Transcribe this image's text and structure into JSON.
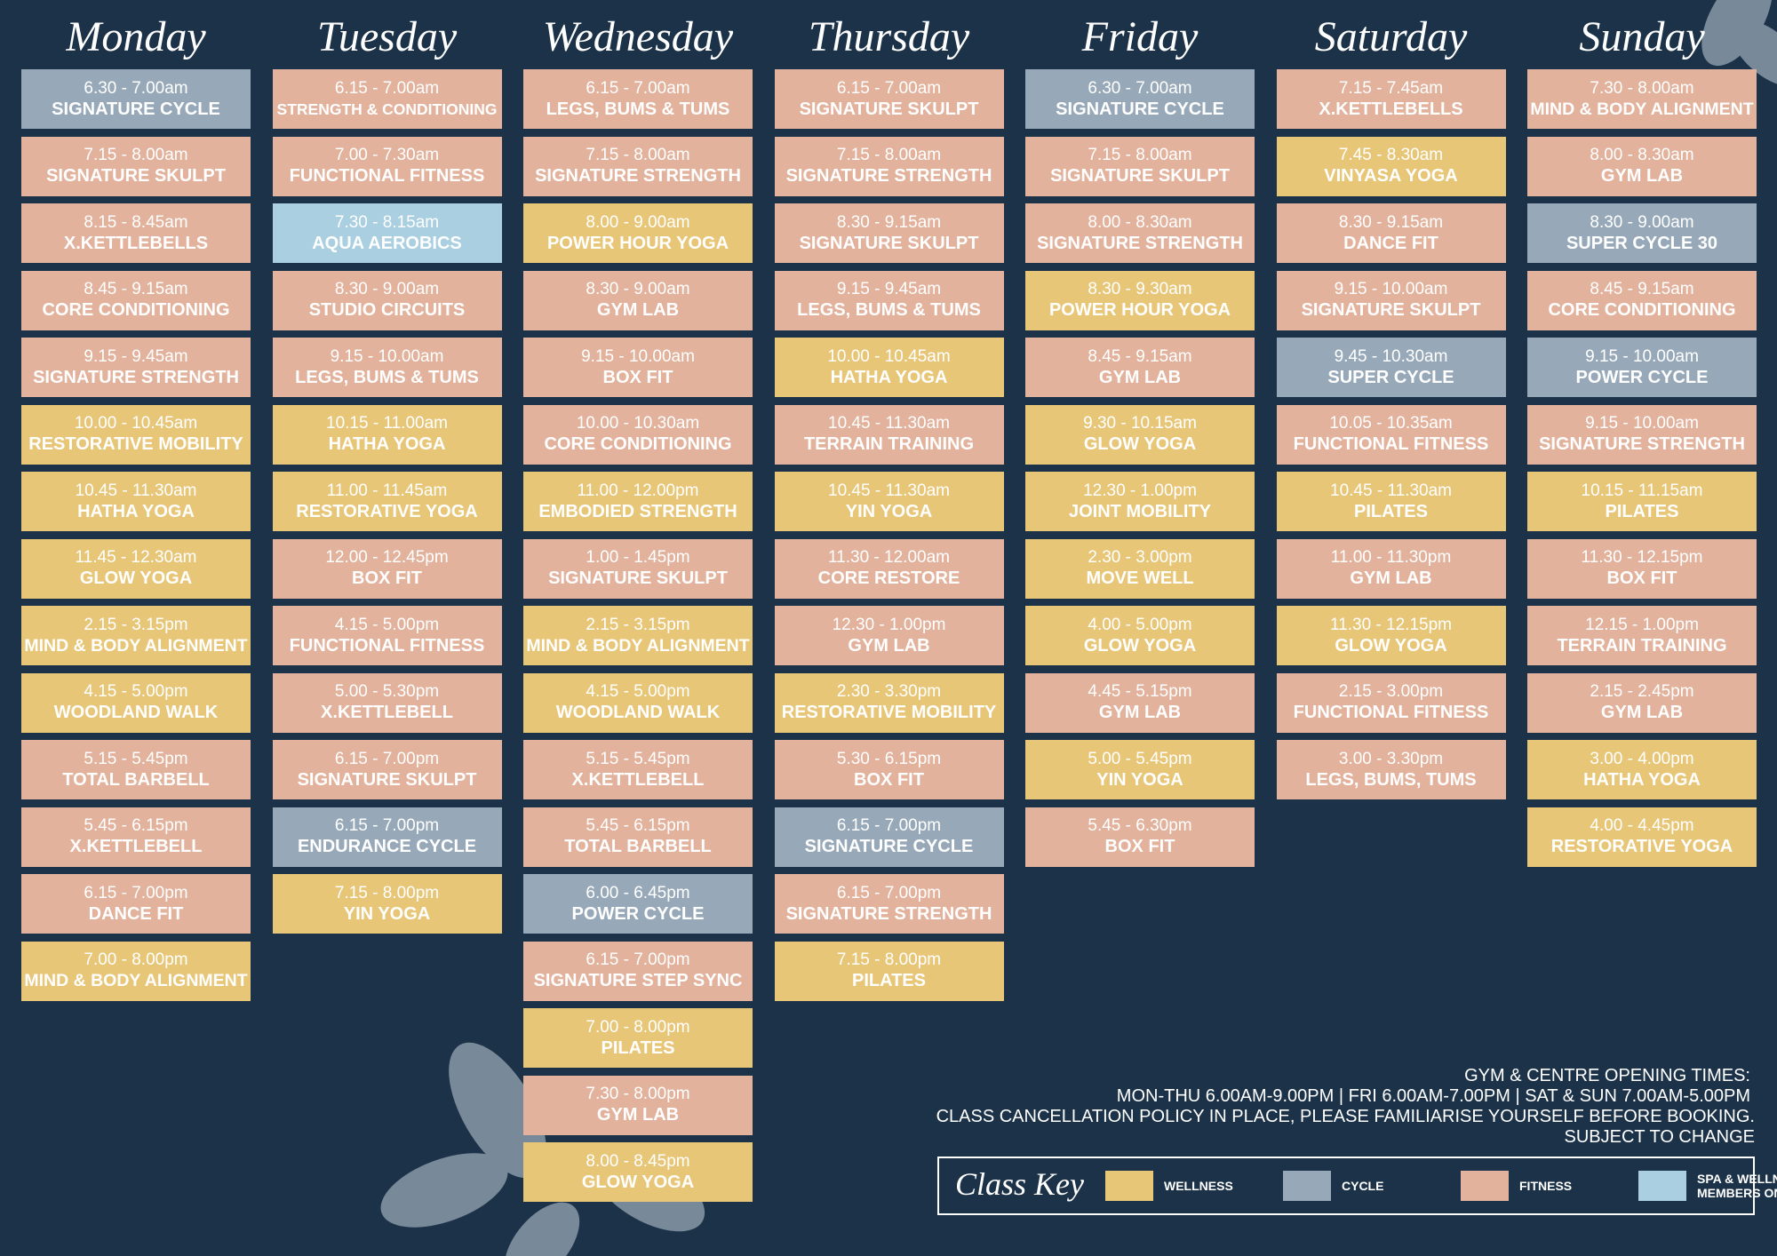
{
  "days": [
    {
      "name": "Monday",
      "classes": [
        {
          "time": "6.30 - 7.00am",
          "name": "SIGNATURE CYCLE",
          "color": "#97a9b9"
        },
        {
          "time": "7.15 - 8.00am",
          "name": "SIGNATURE SKULPT",
          "color": "#e2b29c"
        },
        {
          "time": "8.15 - 8.45am",
          "name": "X.KETTLEBELLS",
          "color": "#e2b29c"
        },
        {
          "time": "8.45 - 9.15am",
          "name": "CORE CONDITIONING",
          "color": "#e2b29c"
        },
        {
          "time": "9.15 - 9.45am",
          "name": "SIGNATURE STRENGTH",
          "color": "#e2b29c"
        },
        {
          "time": "10.00 - 10.45am",
          "name": "RESTORATIVE MOBILITY",
          "color": "#e8c677"
        },
        {
          "time": "10.45 - 11.30am",
          "name": "HATHA YOGA",
          "color": "#e8c677"
        },
        {
          "time": "11.45 - 12.30am",
          "name": "GLOW YOGA",
          "color": "#e8c677"
        },
        {
          "time": "2.15 - 3.15pm",
          "name": "MIND & BODY ALIGNMENT",
          "color": "#e8c677"
        },
        {
          "time": "4.15 - 5.00pm",
          "name": "WOODLAND WALK",
          "color": "#e8c677"
        },
        {
          "time": "5.15 - 5.45pm",
          "name": "TOTAL BARBELL",
          "color": "#e2b29c"
        },
        {
          "time": "5.45 - 6.15pm",
          "name": "X.KETTLEBELL",
          "color": "#e2b29c"
        },
        {
          "time": "6.15 - 7.00pm",
          "name": "DANCE FIT",
          "color": "#e2b29c"
        },
        {
          "time": "7.00 - 8.00pm",
          "name": "MIND & BODY ALIGNMENT",
          "color": "#e8c677"
        }
      ]
    },
    {
      "name": "Tuesday",
      "classes": [
        {
          "time": "6.15 - 7.00am",
          "name": "STRENGTH & CONDITIONING",
          "color": "#e2b29c"
        },
        {
          "time": "7.00 - 7.30am",
          "name": "FUNCTIONAL FITNESS",
          "color": "#e2b29c"
        },
        {
          "time": "7.30 - 8.15am",
          "name": "AQUA AEROBICS",
          "color": "#a9cfe0"
        },
        {
          "time": "8.30 - 9.00am",
          "name": "STUDIO CIRCUITS",
          "color": "#e2b29c"
        },
        {
          "time": "9.15 - 10.00am",
          "name": "LEGS, BUMS & TUMS",
          "color": "#e2b29c"
        },
        {
          "time": "10.15 - 11.00am",
          "name": "HATHA YOGA",
          "color": "#e8c677"
        },
        {
          "time": "11.00 - 11.45am",
          "name": "RESTORATIVE YOGA",
          "color": "#e8c677"
        },
        {
          "time": "12.00 - 12.45pm",
          "name": "BOX FIT",
          "color": "#e2b29c"
        },
        {
          "time": "4.15 - 5.00pm",
          "name": "FUNCTIONAL FITNESS",
          "color": "#e2b29c"
        },
        {
          "time": "5.00 - 5.30pm",
          "name": "X.KETTLEBELL",
          "color": "#e2b29c"
        },
        {
          "time": "6.15 - 7.00pm",
          "name": "SIGNATURE SKULPT",
          "color": "#e2b29c"
        },
        {
          "time": "6.15 - 7.00pm",
          "name": "ENDURANCE CYCLE",
          "color": "#97a9b9"
        },
        {
          "time": "7.15 - 8.00pm",
          "name": "YIN YOGA",
          "color": "#e8c677"
        }
      ]
    },
    {
      "name": "Wednesday",
      "classes": [
        {
          "time": "6.15 - 7.00am",
          "name": "LEGS, BUMS & TUMS",
          "color": "#e2b29c"
        },
        {
          "time": "7.15 - 8.00am",
          "name": "SIGNATURE STRENGTH",
          "color": "#e2b29c"
        },
        {
          "time": "8.00 - 9.00am",
          "name": "POWER HOUR YOGA",
          "color": "#e8c677"
        },
        {
          "time": "8.30 - 9.00am",
          "name": "GYM LAB",
          "color": "#e2b29c"
        },
        {
          "time": "9.15 - 10.00am",
          "name": "BOX FIT",
          "color": "#e2b29c"
        },
        {
          "time": "10.00 - 10.30am",
          "name": "CORE CONDITIONING",
          "color": "#e2b29c"
        },
        {
          "time": "11.00 - 12.00pm",
          "name": "EMBODIED STRENGTH",
          "color": "#e8c677"
        },
        {
          "time": "1.00 - 1.45pm",
          "name": "SIGNATURE SKULPT",
          "color": "#e2b29c"
        },
        {
          "time": "2.15 - 3.15pm",
          "name": "MIND & BODY ALIGNMENT",
          "color": "#e8c677"
        },
        {
          "time": "4.15 - 5.00pm",
          "name": "WOODLAND WALK",
          "color": "#e8c677"
        },
        {
          "time": "5.15 - 5.45pm",
          "name": "X.KETTLEBELL",
          "color": "#e2b29c"
        },
        {
          "time": "5.45 - 6.15pm",
          "name": "TOTAL BARBELL",
          "color": "#e2b29c"
        },
        {
          "time": "6.00 - 6.45pm",
          "name": "POWER CYCLE",
          "color": "#97a9b9"
        },
        {
          "time": "6.15 - 7.00pm",
          "name": "SIGNATURE STEP SYNC",
          "color": "#e2b29c"
        },
        {
          "time": "7.00 - 8.00pm",
          "name": "PILATES",
          "color": "#e8c677"
        },
        {
          "time": "7.30 - 8.00pm",
          "name": "GYM LAB",
          "color": "#e2b29c"
        },
        {
          "time": "8.00 - 8.45pm",
          "name": "GLOW YOGA",
          "color": "#e8c677"
        }
      ]
    },
    {
      "name": "Thursday",
      "classes": [
        {
          "time": "6.15 - 7.00am",
          "name": "SIGNATURE SKULPT",
          "color": "#e2b29c"
        },
        {
          "time": "7.15 - 8.00am",
          "name": "SIGNATURE STRENGTH",
          "color": "#e2b29c"
        },
        {
          "time": "8.30 - 9.15am",
          "name": "SIGNATURE SKULPT",
          "color": "#e2b29c"
        },
        {
          "time": "9.15 - 9.45am",
          "name": "LEGS, BUMS & TUMS",
          "color": "#e2b29c"
        },
        {
          "time": "10.00 - 10.45am",
          "name": "HATHA YOGA",
          "color": "#e8c677"
        },
        {
          "time": "10.45 - 11.30am",
          "name": "TERRAIN TRAINING",
          "color": "#e2b29c"
        },
        {
          "time": "10.45 - 11.30am",
          "name": "YIN YOGA",
          "color": "#e8c677"
        },
        {
          "time": "11.30 - 12.00am",
          "name": "CORE RESTORE",
          "color": "#e2b29c"
        },
        {
          "time": "12.30 - 1.00pm",
          "name": "GYM LAB",
          "color": "#e2b29c"
        },
        {
          "time": "2.30 - 3.30pm",
          "name": "RESTORATIVE MOBILITY",
          "color": "#e8c677"
        },
        {
          "time": "5.30 - 6.15pm",
          "name": "BOX FIT",
          "color": "#e2b29c"
        },
        {
          "time": "6.15 - 7.00pm",
          "name": "SIGNATURE CYCLE",
          "color": "#97a9b9"
        },
        {
          "time": "6.15 - 7.00pm",
          "name": "SIGNATURE STRENGTH",
          "color": "#e2b29c"
        },
        {
          "time": "7.15 - 8.00pm",
          "name": "PILATES",
          "color": "#e8c677"
        }
      ]
    },
    {
      "name": "Friday",
      "classes": [
        {
          "time": "6.30 - 7.00am",
          "name": "SIGNATURE CYCLE",
          "color": "#97a9b9"
        },
        {
          "time": "7.15 - 8.00am",
          "name": "SIGNATURE SKULPT",
          "color": "#e2b29c"
        },
        {
          "time": "8.00 - 8.30am",
          "name": "SIGNATURE STRENGTH",
          "color": "#e2b29c"
        },
        {
          "time": "8.30 - 9.30am",
          "name": "POWER HOUR YOGA",
          "color": "#e8c677"
        },
        {
          "time": "8.45 - 9.15am",
          "name": "GYM LAB",
          "color": "#e2b29c"
        },
        {
          "time": "9.30 - 10.15am",
          "name": "GLOW YOGA",
          "color": "#e8c677"
        },
        {
          "time": "12.30 - 1.00pm",
          "name": "JOINT MOBILITY",
          "color": "#e8c677"
        },
        {
          "time": "2.30 - 3.00pm",
          "name": "MOVE WELL",
          "color": "#e8c677"
        },
        {
          "time": "4.00 - 5.00pm",
          "name": "GLOW YOGA",
          "color": "#e8c677"
        },
        {
          "time": "4.45 - 5.15pm",
          "name": "GYM LAB",
          "color": "#e2b29c"
        },
        {
          "time": "5.00 - 5.45pm",
          "name": "YIN YOGA",
          "color": "#e8c677"
        },
        {
          "time": "5.45 -  6.30pm",
          "name": "BOX FIT",
          "color": "#e2b29c"
        }
      ]
    },
    {
      "name": "Saturday",
      "classes": [
        {
          "time": "7.15 - 7.45am",
          "name": "X.KETTLEBELLS",
          "color": "#e2b29c"
        },
        {
          "time": "7.45 - 8.30am",
          "name": "VINYASA YOGA",
          "color": "#e8c677"
        },
        {
          "time": "8.30 - 9.15am",
          "name": "DANCE FIT",
          "color": "#e2b29c"
        },
        {
          "time": "9.15 - 10.00am",
          "name": "SIGNATURE SKULPT",
          "color": "#e2b29c"
        },
        {
          "time": "9.45 - 10.30am",
          "name": "SUPER CYCLE",
          "color": "#97a9b9"
        },
        {
          "time": "10.05 - 10.35am",
          "name": "FUNCTIONAL FITNESS",
          "color": "#e2b29c"
        },
        {
          "time": "10.45 - 11.30am",
          "name": "PILATES",
          "color": "#e8c677"
        },
        {
          "time": "11.00 - 11.30pm",
          "name": "GYM LAB",
          "color": "#e2b29c"
        },
        {
          "time": "11.30 - 12.15pm",
          "name": "GLOW YOGA",
          "color": "#e8c677"
        },
        {
          "time": "2.15 - 3.00pm",
          "name": "FUNCTIONAL FITNESS",
          "color": "#e2b29c"
        },
        {
          "time": "3.00 - 3.30pm",
          "name": "LEGS, BUMS, TUMS",
          "color": "#e2b29c"
        }
      ]
    },
    {
      "name": "Sunday",
      "classes": [
        {
          "time": "7.30 - 8.00am",
          "name": "MIND & BODY ALIGNMENT",
          "color": "#e2b29c"
        },
        {
          "time": "8.00 - 8.30am",
          "name": "GYM LAB",
          "color": "#e2b29c"
        },
        {
          "time": "8.30 - 9.00am",
          "name": "SUPER CYCLE 30",
          "color": "#97a9b9"
        },
        {
          "time": "8.45 - 9.15am",
          "name": "CORE CONDITIONING",
          "color": "#e2b29c"
        },
        {
          "time": "9.15 - 10.00am",
          "name": "POWER CYCLE",
          "color": "#97a9b9"
        },
        {
          "time": "9.15 - 10.00am",
          "name": "SIGNATURE STRENGTH",
          "color": "#e2b29c"
        },
        {
          "time": "10.15 - 11.15am",
          "name": "PILATES",
          "color": "#e8c677"
        },
        {
          "time": "11.30 - 12.15pm",
          "name": "BOX FIT",
          "color": "#e2b29c"
        },
        {
          "time": "12.15 - 1.00pm",
          "name": "TERRAIN TRAINING",
          "color": "#e2b29c"
        },
        {
          "time": "2.15 - 2.45pm",
          "name": "GYM LAB",
          "color": "#e2b29c"
        },
        {
          "time": "3.00 - 4.00pm",
          "name": "HATHA YOGA",
          "color": "#e8c677"
        },
        {
          "time": "4.00 - 4.45pm",
          "name": "RESTORATIVE YOGA",
          "color": "#e8c677"
        }
      ]
    }
  ],
  "notes": [
    "GYM & CENTRE OPENING TIMES:",
    "MON-THU 6.00AM-9.00PM | FRI 6.00AM-7.00PM | SAT & SUN  7.00AM-5.00PM",
    "CLASS CANCELLATION POLICY IN PLACE, PLEASE FAMILIARISE YOURSELF BEFORE BOOKING.",
    "SUBJECT TO CHANGE"
  ],
  "key": {
    "title": "Class Key",
    "items": [
      {
        "label": "WELLNESS",
        "color": "#e8c677"
      },
      {
        "label": "CYCLE",
        "color": "#97a9b9"
      },
      {
        "label": "FITNESS",
        "color": "#e2b29c"
      },
      {
        "label": "SPA & WELLNESS MEMBERS ONLY",
        "color": "#a9cfe0"
      }
    ]
  }
}
